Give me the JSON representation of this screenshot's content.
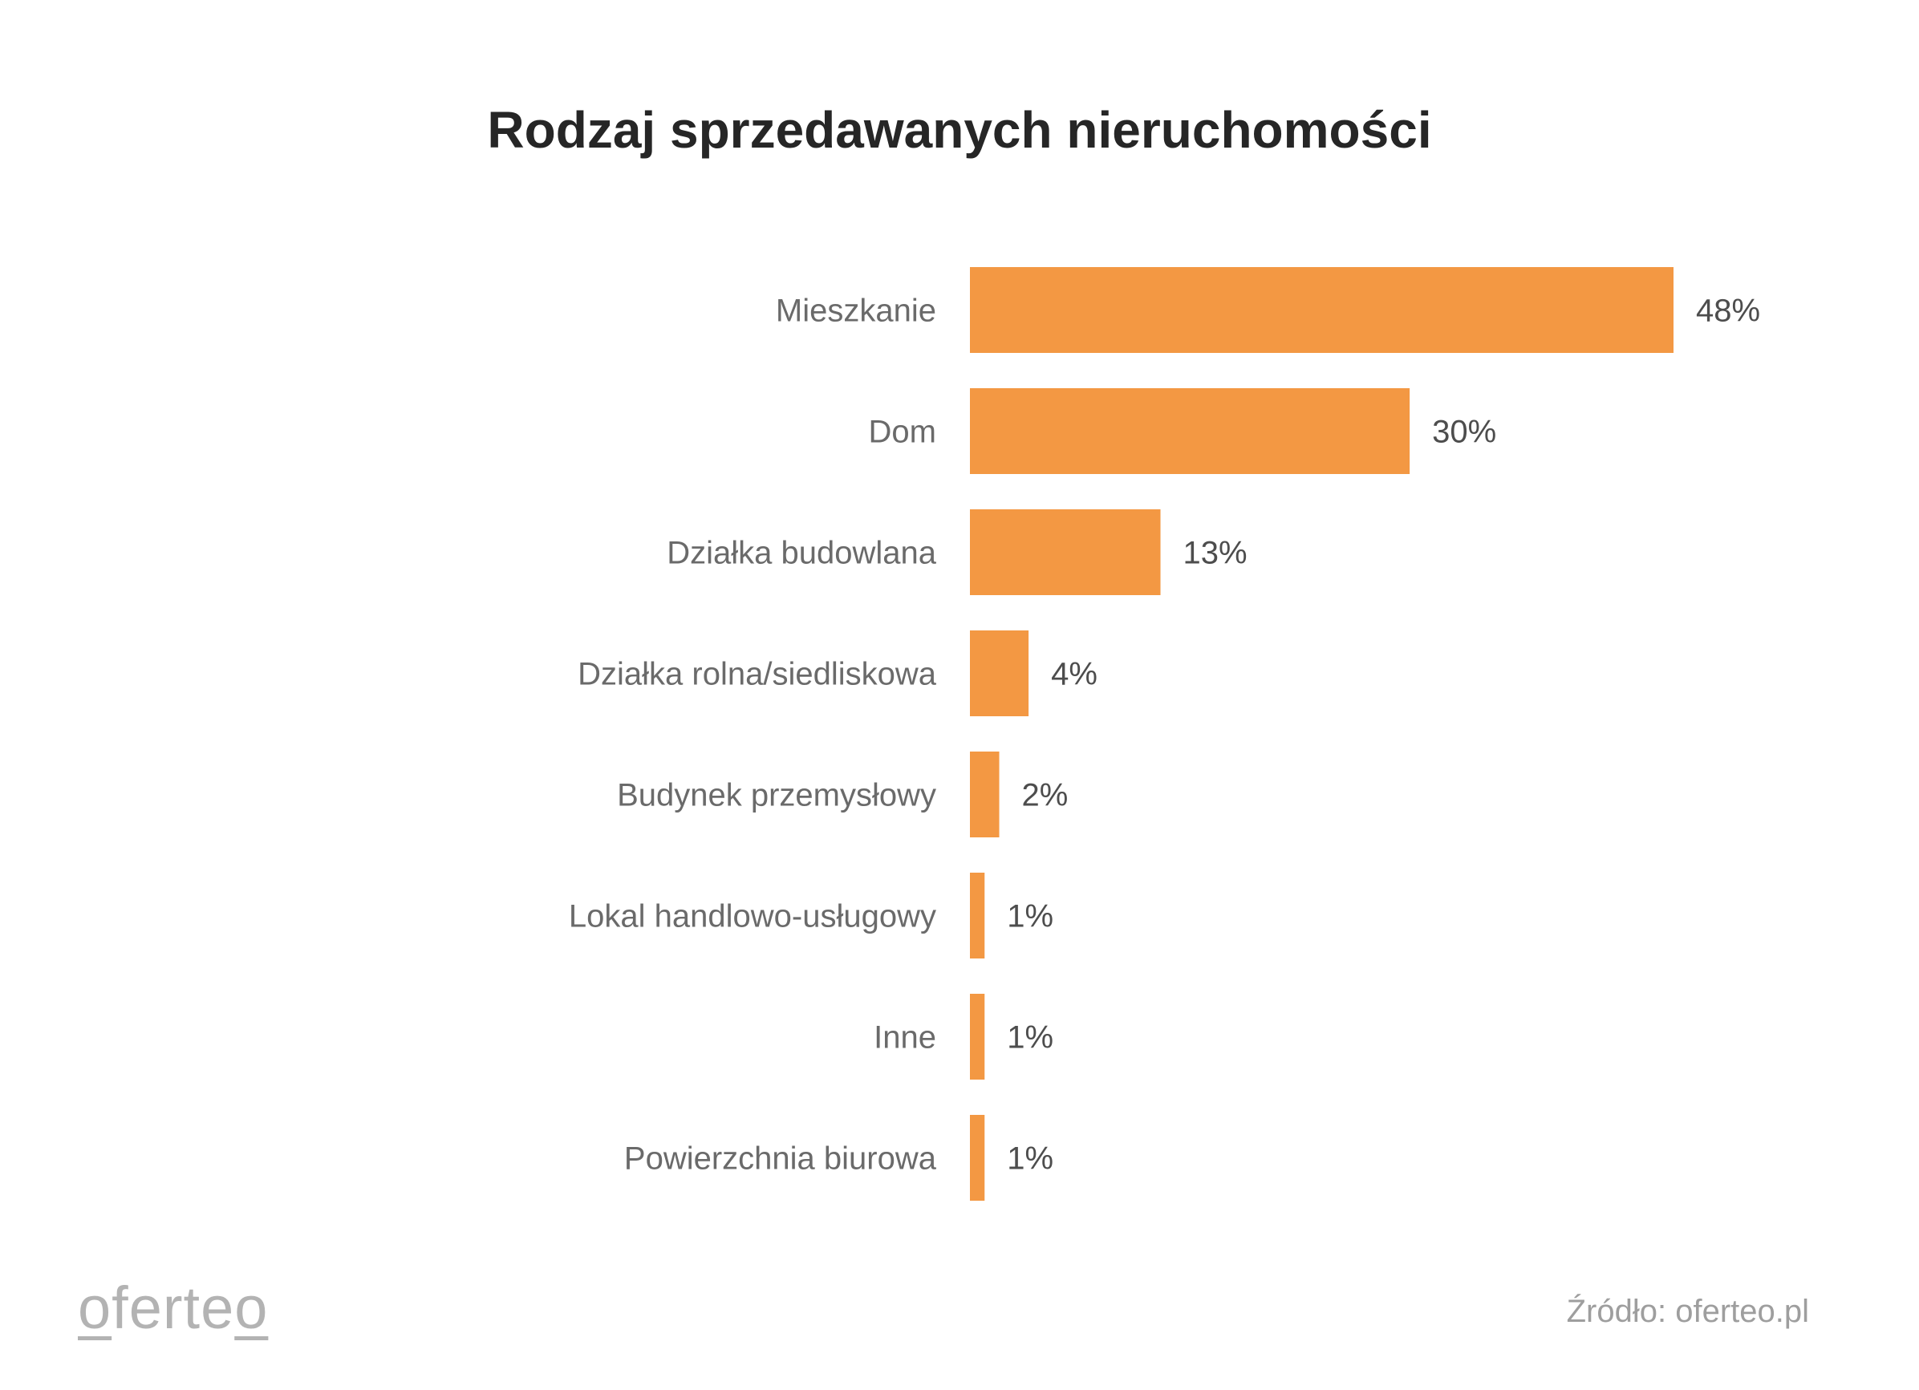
{
  "title": "Rodzaj sprzedawanych nieruchomości",
  "source": "Źródło: oferteo.pl",
  "logo": {
    "first": "o",
    "middle": "ferte",
    "last": "o"
  },
  "colors": {
    "bar": "#f39843"
  },
  "chart_data": {
    "type": "bar",
    "orientation": "horizontal",
    "title": "Rodzaj sprzedawanych nieruchomości",
    "categories": [
      "Mieszkanie",
      "Dom",
      "Działka budowlana",
      "Działka rolna/siedliskowa",
      "Budynek przemysłowy",
      "Lokal handlowo-usługowy",
      "Inne",
      "Powierzchnia biurowa"
    ],
    "values": [
      48,
      30,
      13,
      4,
      2,
      1,
      1,
      1
    ],
    "value_labels": [
      "48%",
      "30%",
      "13%",
      "4%",
      "2%",
      "1%",
      "1%",
      "1%"
    ],
    "xlabel": "",
    "ylabel": "",
    "xlim": [
      0,
      48
    ],
    "grid": false,
    "legend": "none"
  }
}
